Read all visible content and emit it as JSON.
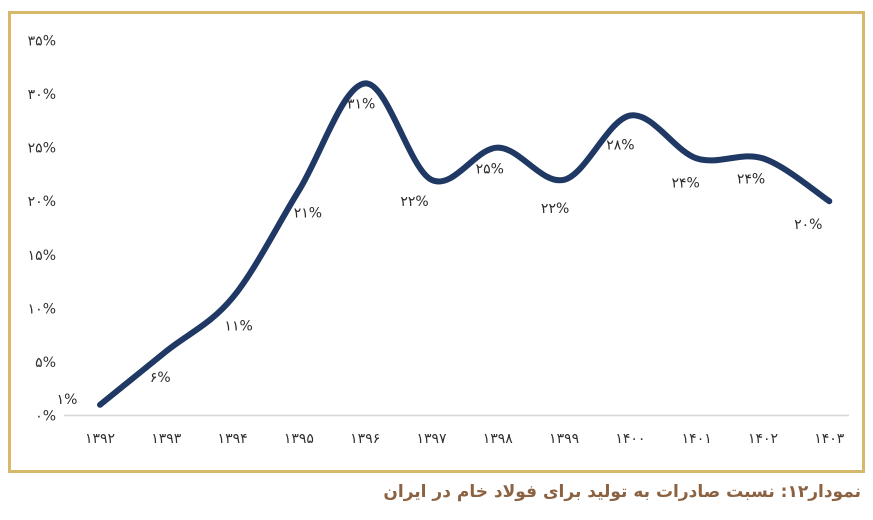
{
  "caption": {
    "text": "نمودار۱۲: نسبت صادرات به تولید برای فولاد خام در ایران",
    "color": "#8B6242"
  },
  "frame": {
    "border_color": "#D6B96A"
  },
  "chart_data": {
    "type": "line",
    "title": "",
    "xlabel": "",
    "ylabel": "",
    "categories": [
      "۱۳۹۲",
      "۱۳۹۳",
      "۱۳۹۴",
      "۱۳۹۵",
      "۱۳۹۶",
      "۱۳۹۷",
      "۱۳۹۸",
      "۱۳۹۹",
      "۱۴۰۰",
      "۱۴۰۱",
      "۱۴۰۲",
      "۱۴۰۳"
    ],
    "categories_translated": [
      1392,
      1393,
      1394,
      1395,
      1396,
      1397,
      1398,
      1399,
      1400,
      1401,
      1402,
      1403
    ],
    "values": [
      1,
      6,
      11,
      21,
      31,
      22,
      25,
      22,
      28,
      24,
      24,
      20
    ],
    "point_labels": [
      "۱%",
      "۶%",
      "۱۱%",
      "۲۱%",
      "۳۱%",
      "۲۲%",
      "۲۵%",
      "۲۲%",
      "۲۸%",
      "۲۴%",
      "۲۴%",
      "۲۰%"
    ],
    "unit": "%",
    "y_tick_values": [
      0,
      5,
      10,
      15,
      20,
      25,
      30,
      35
    ],
    "y_tick_labels": [
      "۰%",
      "۵%",
      "۱۰%",
      "۱۵%",
      "۲۰%",
      "۲۵%",
      "۳۰%",
      "۳۵%"
    ],
    "ylim": [
      0,
      35
    ],
    "grid": false,
    "legend": false,
    "smooth": true,
    "line_color": "#1F3864",
    "axis_line_color": "#D6D6D6",
    "label_color": "#303030"
  }
}
